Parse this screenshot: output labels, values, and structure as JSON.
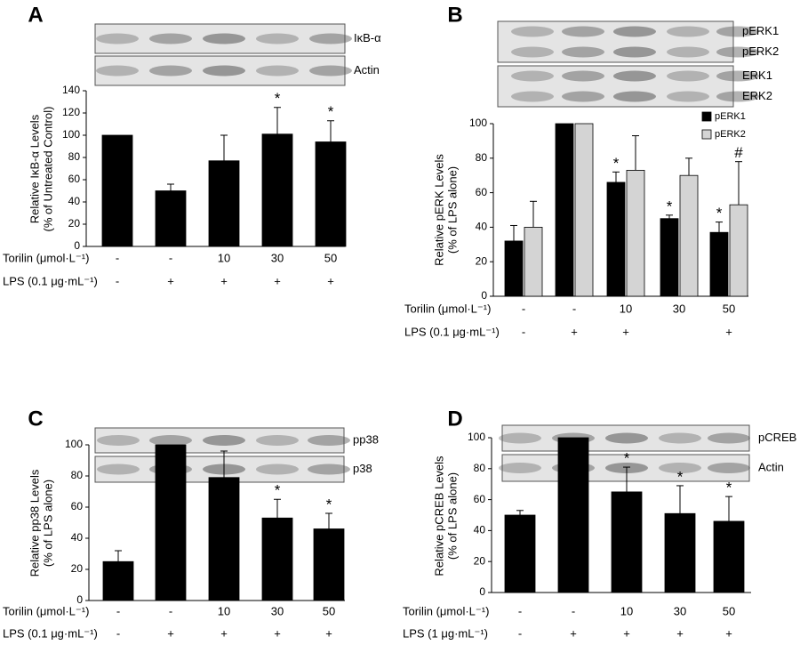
{
  "chart_data": [
    {
      "type": "bar",
      "panel": "A",
      "blots": [
        [
          "IκB-α"
        ],
        [
          "Actin"
        ]
      ],
      "y_label": [
        "Relative IκB-α Levels",
        "(% of Untreated Control)"
      ],
      "values": [
        100,
        50,
        77,
        101,
        94
      ],
      "errors": [
        null,
        6,
        23,
        24,
        19
      ],
      "markers": [
        null,
        null,
        null,
        "*",
        "*"
      ],
      "color": "#000000",
      "ylim": [
        0,
        140
      ],
      "yticks": [
        0,
        20,
        40,
        60,
        80,
        100,
        120,
        140
      ],
      "treatments": [
        {
          "name": "Torilin (μmol·L⁻¹)",
          "values": [
            "-",
            "-",
            "10",
            "30",
            "50"
          ]
        },
        {
          "name": "LPS (0.1 μg·mL⁻¹)",
          "values": [
            "-",
            "+",
            "+",
            "+",
            "+"
          ]
        }
      ]
    },
    {
      "type": "bar",
      "panel": "B",
      "blots": [
        [
          "pERK1",
          "pERK2"
        ],
        [
          "ERK1",
          "ERK2"
        ]
      ],
      "y_label": [
        "Relative pERK Levels",
        "(% of LPS alone)"
      ],
      "series": [
        {
          "name": "pERK1",
          "color": "#000000",
          "values": [
            32,
            100,
            66,
            45,
            37
          ],
          "errors": [
            9,
            null,
            6,
            2,
            6
          ],
          "markers": [
            null,
            null,
            "*",
            "*",
            "*"
          ]
        },
        {
          "name": "pERK2",
          "color": "#d4d4d4",
          "values": [
            40,
            100,
            73,
            70,
            53
          ],
          "errors": [
            15,
            null,
            20,
            10,
            25
          ],
          "markers": [
            null,
            null,
            null,
            null,
            "#"
          ]
        }
      ],
      "legend": "top-right",
      "ylim": [
        0,
        100
      ],
      "yticks": [
        0,
        20,
        40,
        60,
        80,
        100
      ],
      "treatments": [
        {
          "name": "Torilin (μmol·L⁻¹)",
          "values": [
            "-",
            "-",
            "10",
            "30",
            "50"
          ]
        },
        {
          "name": "LPS (0.1 μg·mL⁻¹)",
          "values": [
            "-",
            "+",
            "+",
            null,
            "+"
          ]
        }
      ]
    },
    {
      "type": "bar",
      "panel": "C",
      "blots": [
        [
          "pp38"
        ],
        [
          "p38"
        ]
      ],
      "y_label": [
        "Relative pp38 Levels",
        "(% of LPS alone)"
      ],
      "values": [
        25,
        100,
        79,
        53,
        46
      ],
      "errors": [
        7,
        null,
        17,
        12,
        10
      ],
      "markers": [
        null,
        null,
        null,
        "*",
        "*"
      ],
      "color": "#000000",
      "ylim": [
        0,
        100
      ],
      "yticks": [
        0,
        20,
        40,
        60,
        80,
        100
      ],
      "treatments": [
        {
          "name": "Torilin (μmol·L⁻¹)",
          "values": [
            "-",
            "-",
            "10",
            "30",
            "50"
          ]
        },
        {
          "name": "LPS (0.1 μg·mL⁻¹)",
          "values": [
            "-",
            "+",
            "+",
            "+",
            "+"
          ]
        }
      ]
    },
    {
      "type": "bar",
      "panel": "D",
      "blots": [
        [
          "pCREB"
        ],
        [
          "Actin"
        ]
      ],
      "y_label": [
        "Relative pCREB Levels",
        "(% of LPS alone)"
      ],
      "values": [
        50,
        100,
        65,
        51,
        46
      ],
      "errors": [
        3,
        null,
        16,
        18,
        16
      ],
      "markers": [
        null,
        null,
        "*",
        "*",
        "*"
      ],
      "color": "#000000",
      "ylim": [
        0,
        100
      ],
      "yticks": [
        0,
        20,
        40,
        60,
        80,
        100
      ],
      "treatments": [
        {
          "name": "Torilin (μmol·L⁻¹)",
          "values": [
            "-",
            "-",
            "10",
            "30",
            "50"
          ]
        },
        {
          "name": "LPS (1 μg·mL⁻¹)",
          "values": [
            "-",
            "+",
            "+",
            "+",
            "+"
          ]
        }
      ]
    }
  ]
}
